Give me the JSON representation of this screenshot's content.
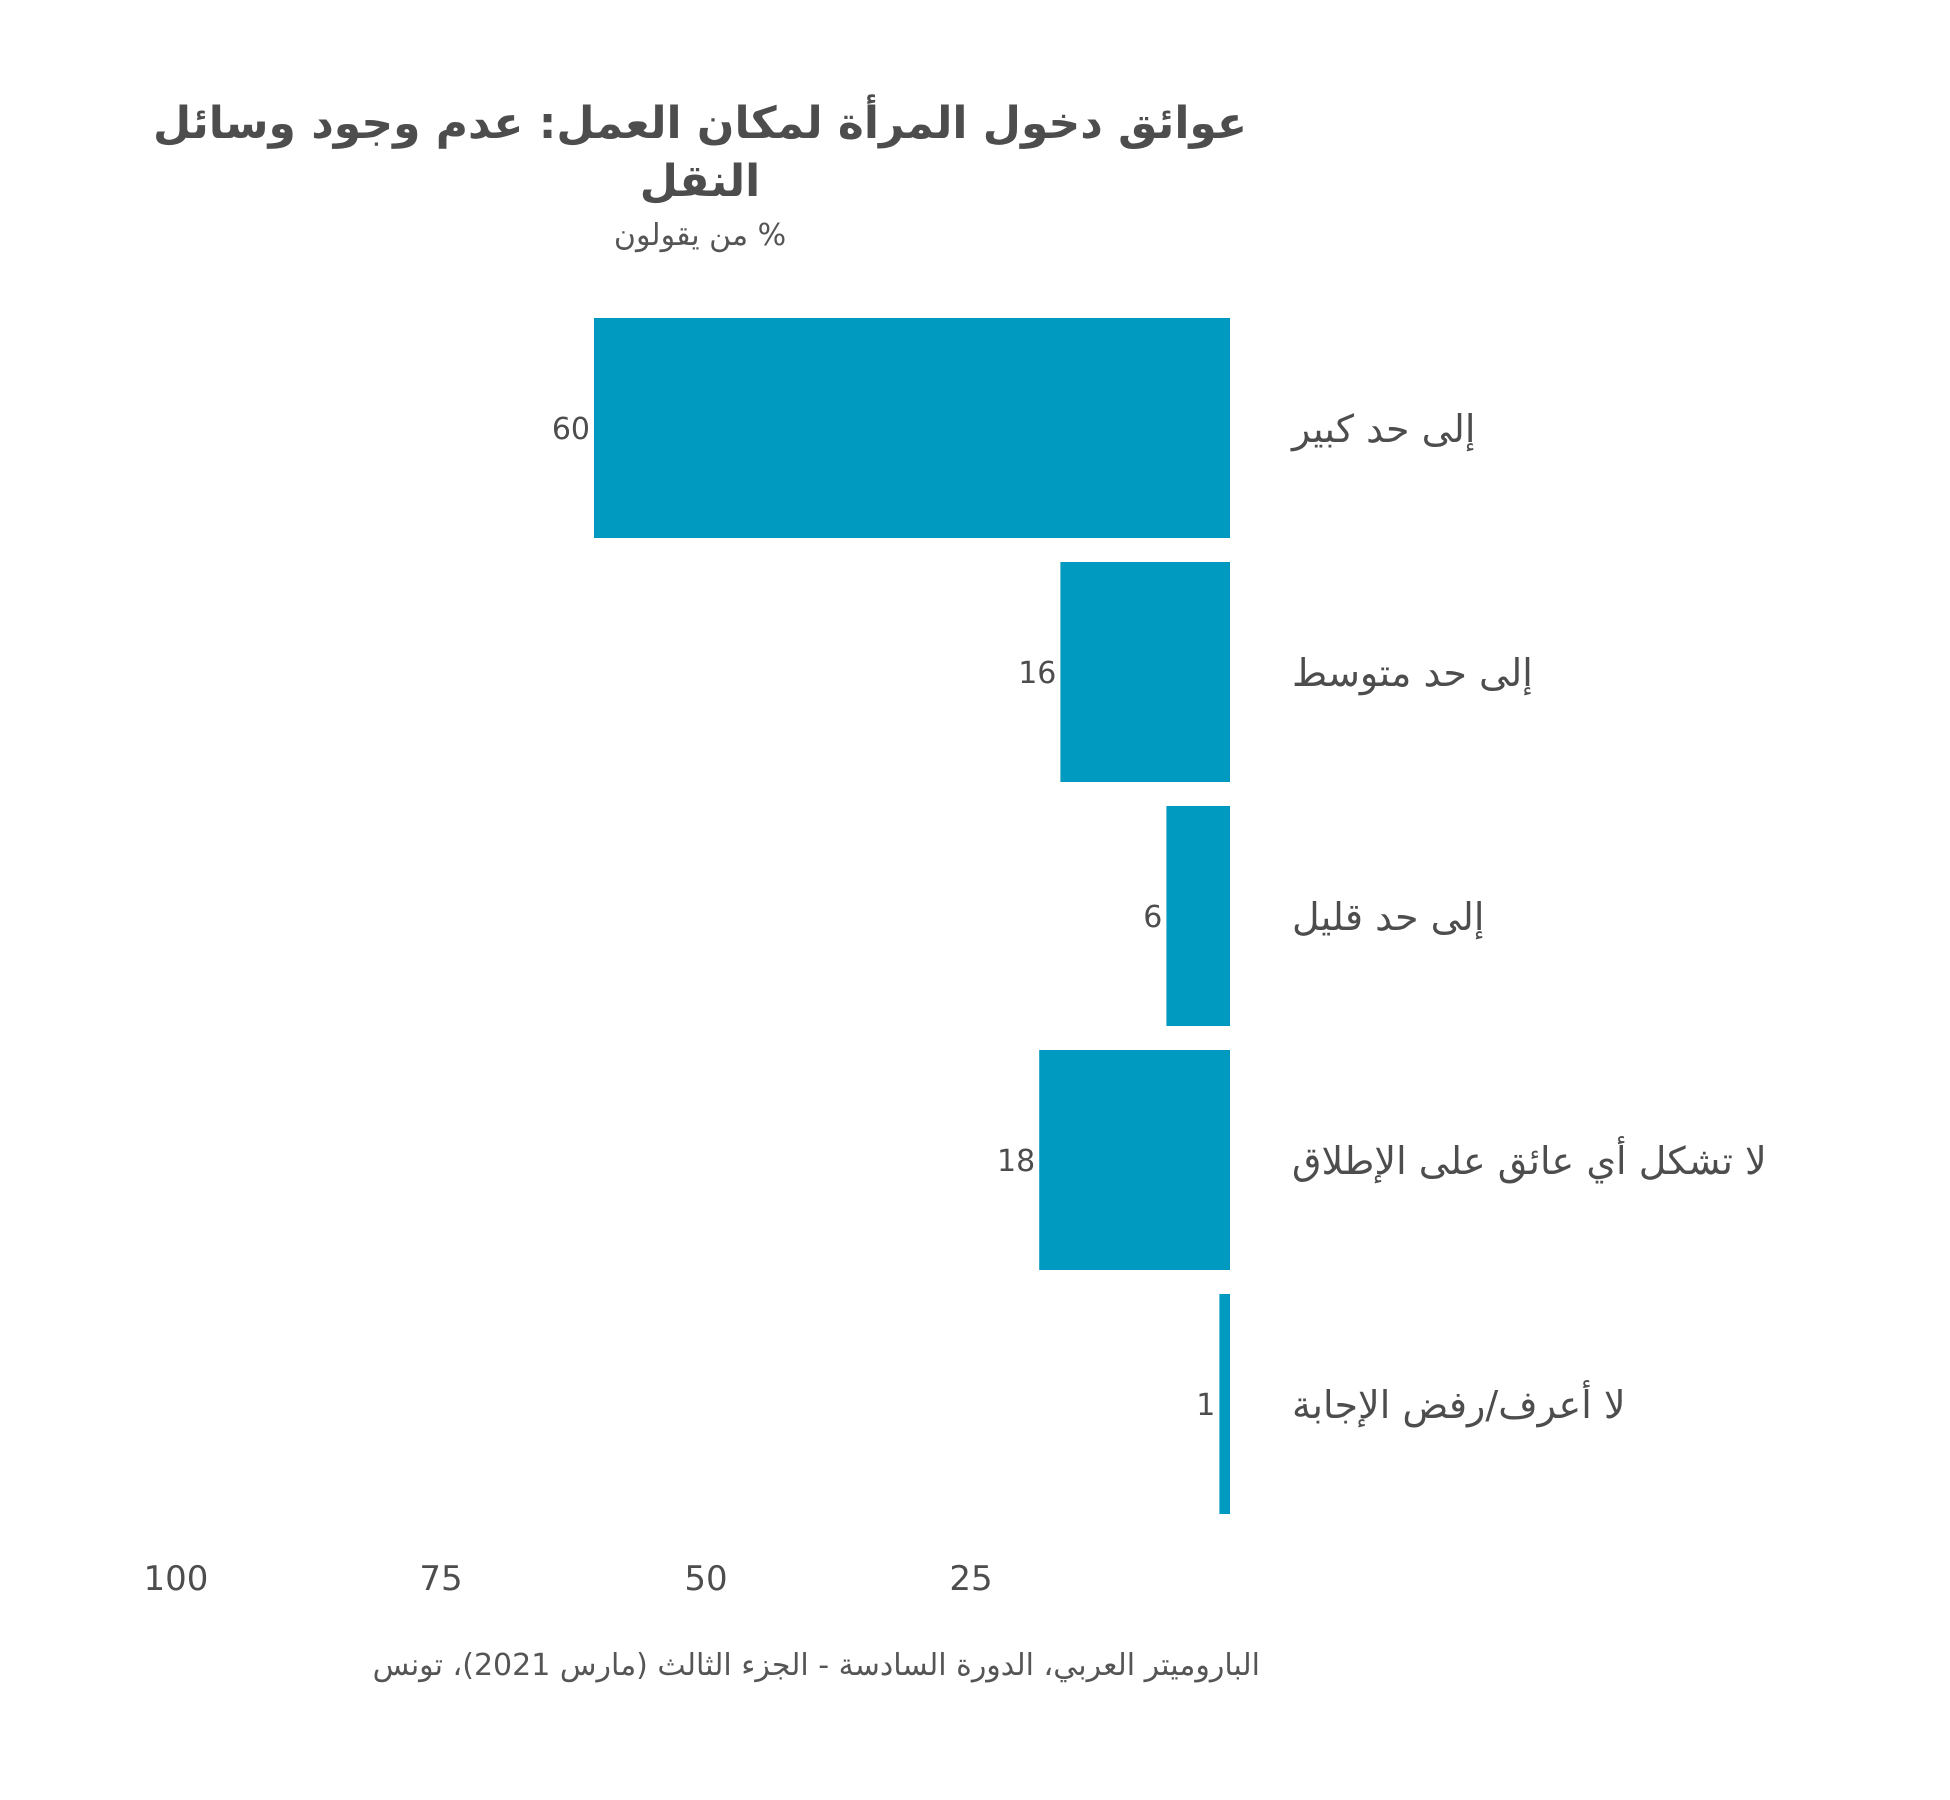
{
  "chart_data": {
    "type": "bar",
    "orientation": "horizontal",
    "title": "عوائق دخول المرأة لمكان العمل: عدم وجود وسائل النقل",
    "subtitle": "% من يقولون",
    "source": "الباروميتر العربي، الدورة السادسة - الجزء الثالث (مارس 2021)، تونس",
    "categories": [
      "إلى حد كبير",
      "إلى حد متوسط",
      "إلى حد قليل",
      "لا تشكل أي عائق على الإطلاق",
      "لا أعرف/رفض الإجابة"
    ],
    "values": [
      60,
      16,
      6,
      18,
      1
    ],
    "xlim": [
      0,
      100
    ],
    "x_ticks": [
      100,
      75,
      50,
      25
    ],
    "x_reversed": true,
    "bar_color": "#0099C0",
    "grid": false,
    "legend": "none"
  }
}
